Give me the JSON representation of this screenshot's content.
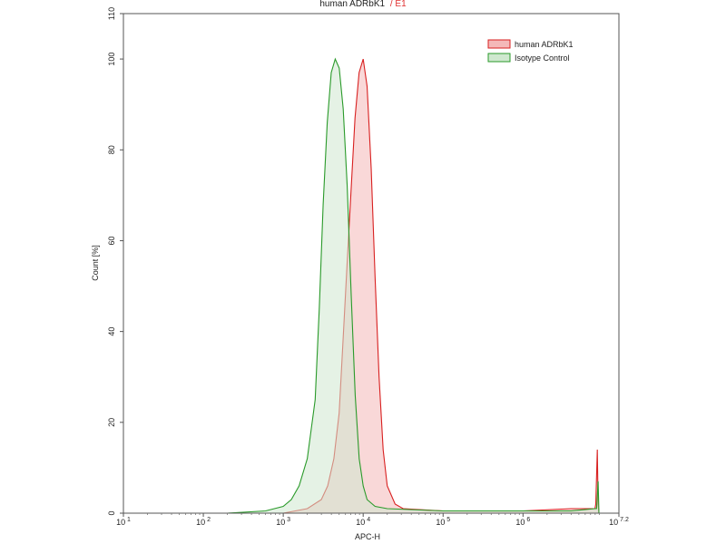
{
  "chart_data": {
    "type": "area",
    "title": "human ADRbK1",
    "title_suffix": "/ E1",
    "title_suffix_color": "#e03030",
    "xlabel": "APC-H",
    "ylabel": "Count [%]",
    "x_scale": "log10",
    "xlim": [
      10,
      15848932
    ],
    "ylim": [
      0,
      110
    ],
    "x_ticks": [
      {
        "value": 10,
        "base": "10",
        "exp": "1"
      },
      {
        "value": 100,
        "base": "10",
        "exp": "2"
      },
      {
        "value": 1000,
        "base": "10",
        "exp": "3"
      },
      {
        "value": 10000,
        "base": "10",
        "exp": "4"
      },
      {
        "value": 100000,
        "base": "10",
        "exp": "5"
      },
      {
        "value": 1000000,
        "base": "10",
        "exp": "6"
      },
      {
        "value": 15848932,
        "base": "10",
        "exp": "7.2"
      }
    ],
    "y_ticks": [
      {
        "value": 0,
        "label": "0"
      },
      {
        "value": 20,
        "label": "20"
      },
      {
        "value": 40,
        "label": "40"
      },
      {
        "value": 60,
        "label": "60"
      },
      {
        "value": 80,
        "label": "80"
      },
      {
        "value": 100,
        "label": "100"
      },
      {
        "value": 110,
        "label": "110"
      }
    ],
    "grid": false,
    "legend_position": "top-right",
    "series": [
      {
        "name": "human ADRbK1",
        "line_color": "#d82020",
        "fill_color": "#f4b8b8",
        "points": [
          [
            1000,
            0
          ],
          [
            2000,
            1
          ],
          [
            3000,
            3
          ],
          [
            3600,
            6
          ],
          [
            4300,
            12
          ],
          [
            5000,
            22
          ],
          [
            5600,
            38
          ],
          [
            6300,
            55
          ],
          [
            7100,
            72
          ],
          [
            7900,
            87
          ],
          [
            8900,
            97
          ],
          [
            10000,
            100
          ],
          [
            11200,
            94
          ],
          [
            12600,
            76
          ],
          [
            14100,
            52
          ],
          [
            15800,
            30
          ],
          [
            17800,
            14
          ],
          [
            20000,
            6
          ],
          [
            25100,
            2
          ],
          [
            31600,
            1
          ],
          [
            100000,
            0.5
          ],
          [
            1000000,
            0.5
          ],
          [
            3980000,
            1
          ],
          [
            7940000,
            1
          ],
          [
            8130000,
            2
          ],
          [
            8510000,
            14
          ],
          [
            8710000,
            2
          ],
          [
            8910000,
            0
          ]
        ]
      },
      {
        "name": "Isotype Control",
        "line_color": "#2a9a2a",
        "fill_color": "#cfe8cf",
        "points": [
          [
            200,
            0
          ],
          [
            600,
            0.5
          ],
          [
            1000,
            1.5
          ],
          [
            1260,
            3
          ],
          [
            1580,
            6
          ],
          [
            2000,
            12
          ],
          [
            2510,
            25
          ],
          [
            2820,
            45
          ],
          [
            3160,
            68
          ],
          [
            3550,
            86
          ],
          [
            3980,
            97
          ],
          [
            4470,
            100
          ],
          [
            5010,
            98
          ],
          [
            5620,
            89
          ],
          [
            6310,
            72
          ],
          [
            7080,
            48
          ],
          [
            7940,
            26
          ],
          [
            8910,
            12
          ],
          [
            10000,
            6
          ],
          [
            11200,
            3
          ],
          [
            14100,
            1.5
          ],
          [
            20000,
            1
          ],
          [
            100000,
            0.5
          ],
          [
            1000000,
            0.5
          ],
          [
            3980000,
            0.5
          ],
          [
            7940000,
            1
          ],
          [
            8320000,
            1
          ],
          [
            8710000,
            7
          ],
          [
            8910000,
            0
          ]
        ]
      }
    ]
  }
}
